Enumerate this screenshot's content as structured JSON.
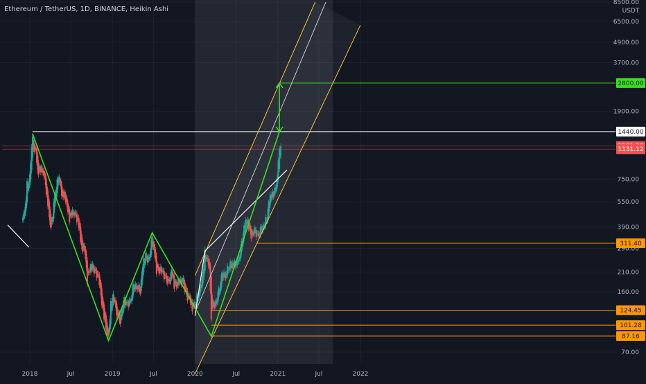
{
  "header": {
    "symbol_title": "Ethereum / TetherUS, 1D, BINANCE, Heikin Ashi"
  },
  "colors": {
    "background": "#131722",
    "axis_text": "#b2b5be",
    "grid": "#1e222d",
    "candle_up": "#26a69a",
    "candle_down": "#ef5350",
    "zigzag": "#39e01f",
    "channel": "#f5c23a",
    "channel_mid": "#c8c8c8",
    "trendline": "#ffffff",
    "level_orange": "#ff9800",
    "level_white": "#ffffff",
    "level_green": "#39e01f",
    "level_red": "#ef5350"
  },
  "chart_data": {
    "type": "candlestick",
    "title": "Ethereum / TetherUS, 1D, BINANCE, Heikin Ashi",
    "y_unit": "USDT",
    "y_scale": "log",
    "ylim": [
      58,
      8500
    ],
    "x_ticks": [
      "2018",
      "Jul",
      "2019",
      "Jul",
      "2020",
      "Jul",
      "2021",
      "Jul",
      "2022"
    ],
    "y_ticks": [
      "8500.00",
      "6500.00",
      "4900.00",
      "3700.00",
      "1900.00",
      "750.00",
      "550.00",
      "390.00",
      "290.00",
      "210.00",
      "160.00",
      "70.00"
    ],
    "series": [
      {
        "points": [
          [
            "2017-12-01",
            440
          ],
          [
            "2017-12-10",
            470
          ],
          [
            "2017-12-20",
            700
          ],
          [
            "2017-12-28",
            720
          ],
          [
            "2018-01-05",
            980
          ],
          [
            "2018-01-13",
            1400
          ],
          [
            "2018-01-20",
            1100
          ],
          [
            "2018-01-28",
            1080
          ],
          [
            "2018-02-05",
            800
          ],
          [
            "2018-02-15",
            880
          ],
          [
            "2018-02-25",
            850
          ],
          [
            "2018-03-05",
            820
          ],
          [
            "2018-03-15",
            620
          ],
          [
            "2018-03-25",
            500
          ],
          [
            "2018-04-01",
            380
          ],
          [
            "2018-04-10",
            420
          ],
          [
            "2018-04-20",
            600
          ],
          [
            "2018-04-28",
            680
          ],
          [
            "2018-05-06",
            780
          ],
          [
            "2018-05-15",
            700
          ],
          [
            "2018-05-25",
            590
          ],
          [
            "2018-06-05",
            610
          ],
          [
            "2018-06-15",
            520
          ],
          [
            "2018-06-25",
            440
          ],
          [
            "2018-07-05",
            470
          ],
          [
            "2018-07-20",
            470
          ],
          [
            "2018-08-01",
            420
          ],
          [
            "2018-08-10",
            360
          ],
          [
            "2018-08-20",
            290
          ],
          [
            "2018-09-01",
            290
          ],
          [
            "2018-09-12",
            185
          ],
          [
            "2018-09-25",
            225
          ],
          [
            "2018-10-05",
            225
          ],
          [
            "2018-10-20",
            205
          ],
          [
            "2018-11-01",
            200
          ],
          [
            "2018-11-15",
            140
          ],
          [
            "2018-11-25",
            115
          ],
          [
            "2018-12-08",
            88
          ],
          [
            "2018-12-15",
            85
          ],
          [
            "2018-12-25",
            135
          ],
          [
            "2019-01-05",
            155
          ],
          [
            "2019-01-20",
            120
          ],
          [
            "2019-02-05",
            108
          ],
          [
            "2019-02-20",
            145
          ],
          [
            "2019-03-05",
            135
          ],
          [
            "2019-03-20",
            138
          ],
          [
            "2019-04-05",
            175
          ],
          [
            "2019-04-20",
            170
          ],
          [
            "2019-05-05",
            165
          ],
          [
            "2019-05-15",
            230
          ],
          [
            "2019-05-28",
            265
          ],
          [
            "2019-06-10",
            245
          ],
          [
            "2019-06-26",
            335
          ],
          [
            "2019-07-05",
            290
          ],
          [
            "2019-07-15",
            215
          ],
          [
            "2019-07-30",
            218
          ],
          [
            "2019-08-10",
            210
          ],
          [
            "2019-08-25",
            190
          ],
          [
            "2019-09-10",
            180
          ],
          [
            "2019-09-20",
            220
          ],
          [
            "2019-10-01",
            175
          ],
          [
            "2019-10-15",
            180
          ],
          [
            "2019-10-26",
            185
          ],
          [
            "2019-11-10",
            185
          ],
          [
            "2019-11-25",
            150
          ],
          [
            "2019-12-10",
            145
          ],
          [
            "2019-12-20",
            128
          ],
          [
            "2020-01-05",
            140
          ],
          [
            "2020-01-20",
            165
          ],
          [
            "2020-02-01",
            185
          ],
          [
            "2020-02-14",
            275
          ],
          [
            "2020-02-25",
            250
          ],
          [
            "2020-03-05",
            230
          ],
          [
            "2020-03-13",
            115
          ],
          [
            "2020-03-20",
            130
          ],
          [
            "2020-04-01",
            135
          ],
          [
            "2020-04-15",
            160
          ],
          [
            "2020-05-01",
            205
          ],
          [
            "2020-05-15",
            200
          ],
          [
            "2020-06-01",
            235
          ],
          [
            "2020-06-20",
            230
          ],
          [
            "2020-07-10",
            240
          ],
          [
            "2020-07-25",
            305
          ],
          [
            "2020-08-05",
            390
          ],
          [
            "2020-08-15",
            430
          ],
          [
            "2020-08-25",
            400
          ],
          [
            "2020-09-05",
            340
          ],
          [
            "2020-09-20",
            375
          ],
          [
            "2020-10-05",
            340
          ],
          [
            "2020-10-20",
            380
          ],
          [
            "2020-11-01",
            400
          ],
          [
            "2020-11-15",
            450
          ],
          [
            "2020-11-25",
            570
          ],
          [
            "2020-12-05",
            600
          ],
          [
            "2020-12-20",
            640
          ],
          [
            "2020-12-28",
            720
          ],
          [
            "2021-01-03",
            980
          ],
          [
            "2021-01-08",
            1200
          ],
          [
            "2021-01-10",
            1100
          ],
          [
            "2021-01-14",
            1180
          ]
        ]
      }
    ],
    "annotations": {
      "zigzag": [
        [
          "2018-01-13",
          1400
        ],
        [
          "2018-12-15",
          82
        ],
        [
          "2019-06-26",
          360
        ],
        [
          "2020-03-13",
          87
        ],
        [
          "2021-01-08",
          1440
        ]
      ],
      "target_arrow": {
        "from": [
          "2021-01-08",
          1440
        ],
        "to": [
          "2021-01-08",
          2800
        ]
      },
      "trendlines": [
        [
          [
            "2017-09-25",
            400
          ],
          [
            "2017-12-28",
            295
          ]
        ],
        [
          [
            "2020-01-01",
            115
          ],
          [
            "2020-02-14",
            280
          ]
        ],
        [
          [
            "2020-02-14",
            280
          ],
          [
            "2021-02-10",
            850
          ]
        ]
      ],
      "channel": {
        "upper": [
          [
            "2020-01-01",
            200
          ],
          [
            "2021-06-15",
            8500
          ]
        ],
        "mid": [
          [
            "2020-01-01",
            120
          ],
          [
            "2021-08-01",
            8500
          ]
        ],
        "lower": [
          [
            "2020-01-01",
            52
          ],
          [
            "2022-01-01",
            6200
          ]
        ]
      },
      "shaded_range": {
        "x_from": "2020-01-01",
        "x_to": "2021-09-01"
      }
    },
    "price_levels": [
      {
        "label": "2800.00",
        "value": 2800,
        "kind": "green",
        "x_from": "2021-01-08"
      },
      {
        "label": "1440.00",
        "value": 1440,
        "kind": "white",
        "x_from": "2018-01-13"
      },
      {
        "label": "1181.20",
        "value": 1181.2,
        "kind": "red",
        "x_from": "2017-09-01"
      },
      {
        "label": "1131.12",
        "value": 1131.12,
        "kind": "red",
        "x_from": "2017-09-01"
      },
      {
        "label": "311.40",
        "value": 311.4,
        "kind": "orange",
        "x_from": "2020-10-01"
      },
      {
        "label": "124.45",
        "value": 124.45,
        "kind": "orange",
        "x_from": "2020-03-13"
      },
      {
        "label": "101.28",
        "value": 101.28,
        "kind": "orange",
        "x_from": "2020-03-13"
      },
      {
        "label": "87.16",
        "value": 87.16,
        "kind": "orange",
        "x_from": "2020-03-13"
      }
    ]
  }
}
